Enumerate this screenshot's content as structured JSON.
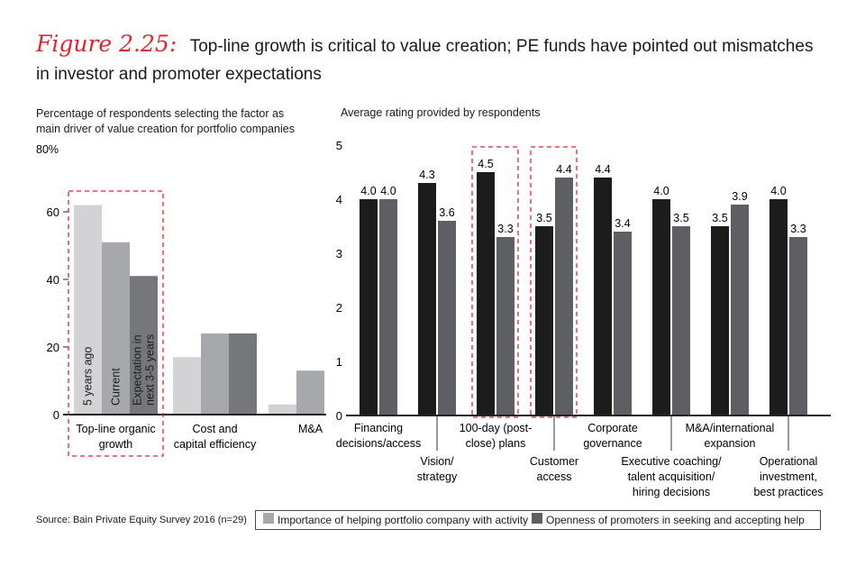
{
  "header": {
    "figure_label": "Figure 2.25",
    "figure_colon": ":",
    "title": "Top-line growth is critical to value creation; PE funds have pointed out mismatches in investor and promoter expectations"
  },
  "left_subtitle": "Percentage of respondents selecting the factor as main driver of value creation for portfolio companies",
  "right_subtitle": "Average rating provided by respondents",
  "source": "Source: Bain Private Equity Survey 2016 (n=29)",
  "legend": {
    "item1": "Importance of helping portfolio company with activity",
    "item2": "Openness of promoters in seeking and accepting help"
  },
  "colors": {
    "accent": "#e3232b",
    "five_years_ago": "#d3d3d5",
    "current": "#a7a8ab",
    "expectation": "#76777a",
    "importance": "#1c1c1c",
    "openness": "#5e5f62"
  },
  "chart_data": [
    {
      "type": "bar",
      "top_tick_label": "80%",
      "ylim": [
        0,
        80
      ],
      "yticks": [
        0,
        20,
        40,
        60
      ],
      "categories": [
        {
          "lines": [
            "Top-line organic",
            "growth"
          ]
        },
        {
          "lines": [
            "Cost and",
            "capital efficiency"
          ]
        },
        {
          "lines": [
            "M&A"
          ]
        }
      ],
      "series": [
        {
          "name": "5 years ago",
          "label_lines": [
            "5 years ago"
          ],
          "values": [
            62,
            17,
            3
          ]
        },
        {
          "name": "Current",
          "label_lines": [
            "Current"
          ],
          "values": [
            51,
            24,
            13
          ]
        },
        {
          "name": "Expectation in next 3-5 years",
          "label_lines": [
            "Expectation in",
            "next 3-5 years"
          ],
          "values": [
            41,
            24,
            0
          ]
        }
      ],
      "highlight_category": 0
    },
    {
      "type": "bar",
      "ylim": [
        0,
        5
      ],
      "yticks": [
        0,
        1,
        2,
        3,
        4,
        5
      ],
      "categories": [
        {
          "lines": [
            "Financing",
            "decisions/access"
          ]
        },
        {
          "lines": [
            "Vision/",
            "strategy"
          ]
        },
        {
          "lines": [
            "100-day (post-",
            "close) plans"
          ]
        },
        {
          "lines": [
            "Customer",
            "access"
          ]
        },
        {
          "lines": [
            "Corporate",
            "governance"
          ]
        },
        {
          "lines": [
            "Executive coaching/",
            "talent acquisition/",
            "hiring decisions"
          ]
        },
        {
          "lines": [
            "M&A/international",
            "expansion"
          ]
        },
        {
          "lines": [
            "Operational",
            "investment,",
            "best practices"
          ]
        }
      ],
      "series": [
        {
          "name": "Importance of helping portfolio company with activity",
          "values": [
            4.0,
            4.3,
            4.5,
            3.5,
            4.4,
            4.0,
            3.5,
            4.0
          ]
        },
        {
          "name": "Openness of promoters in seeking and accepting help",
          "values": [
            4.0,
            3.6,
            3.3,
            4.4,
            3.4,
            3.5,
            3.9,
            3.3
          ]
        }
      ],
      "highlight_categories": [
        2,
        3
      ]
    }
  ]
}
